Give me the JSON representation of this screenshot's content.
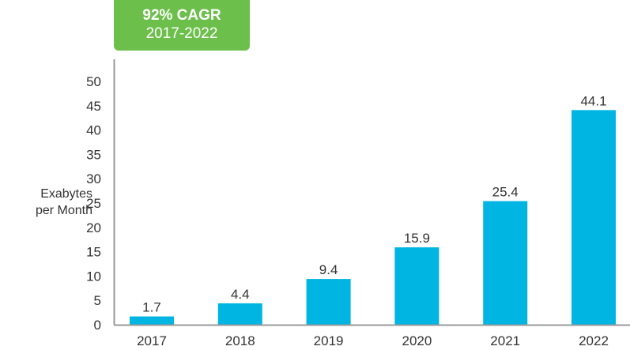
{
  "badge": {
    "line1": "92% CAGR",
    "line2": "2017-2022"
  },
  "chart_data": {
    "type": "bar",
    "title": "",
    "xlabel": "",
    "ylabel": "Exabytes per Month",
    "ylabel_lines": [
      "Exabytes",
      "per Month"
    ],
    "categories": [
      "2017",
      "2018",
      "2019",
      "2020",
      "2021",
      "2022"
    ],
    "values": [
      1.7,
      4.4,
      9.4,
      15.9,
      25.4,
      44.1
    ],
    "data_labels": [
      "1.7",
      "4.4",
      "9.4",
      "15.9",
      "25.4",
      "44.1"
    ],
    "ylim": [
      0,
      50
    ],
    "yticks": [
      0,
      5,
      10,
      15,
      20,
      25,
      30,
      35,
      40,
      45,
      50
    ],
    "grid": false,
    "bar_color": "#00b5e2",
    "annotation": "92% CAGR 2017-2022"
  }
}
